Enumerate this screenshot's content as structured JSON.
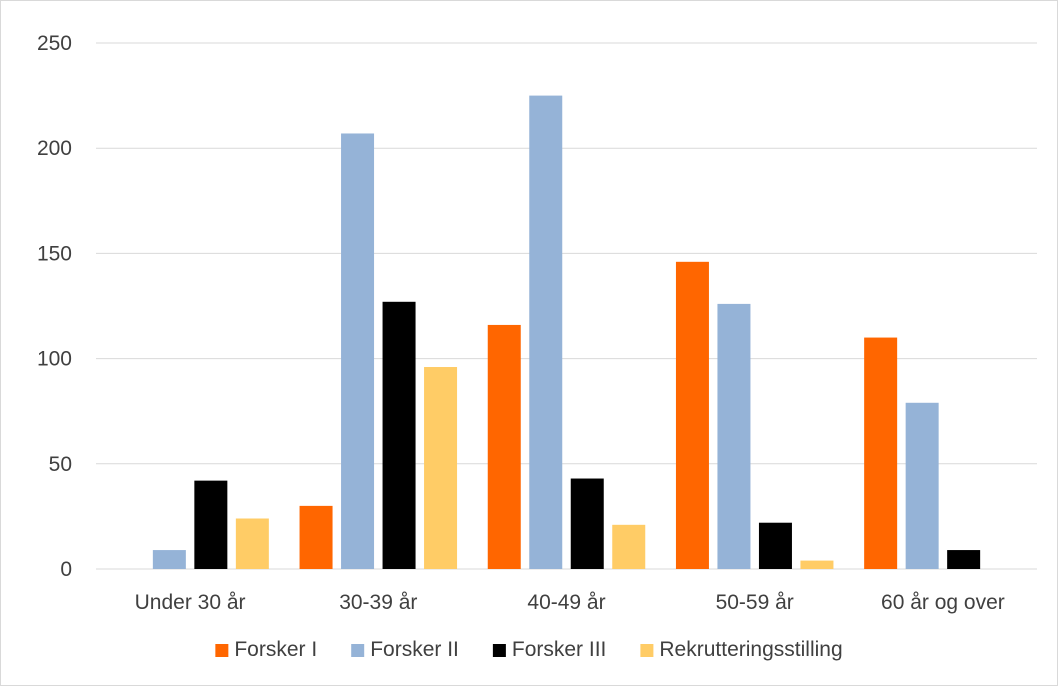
{
  "chart_data": {
    "type": "bar",
    "categories": [
      "Under 30 år",
      "30-39 år",
      "40-49 år",
      "50-59 år",
      "60 år og over"
    ],
    "series": [
      {
        "name": "Forsker I",
        "color": "#ff6600",
        "values": [
          0,
          30,
          116,
          146,
          110
        ]
      },
      {
        "name": "Forsker II",
        "color": "#95b3d7",
        "values": [
          9,
          207,
          225,
          126,
          79
        ]
      },
      {
        "name": "Forsker III",
        "color": "#000000",
        "values": [
          42,
          127,
          43,
          22,
          9
        ]
      },
      {
        "name": "Rekrutteringsstilling",
        "color": "#ffcc66",
        "values": [
          24,
          96,
          21,
          4,
          0
        ]
      }
    ],
    "ylim": [
      0,
      250
    ],
    "yticks": [
      0,
      50,
      100,
      150,
      200,
      250
    ],
    "grid": true,
    "legend_position": "bottom"
  }
}
